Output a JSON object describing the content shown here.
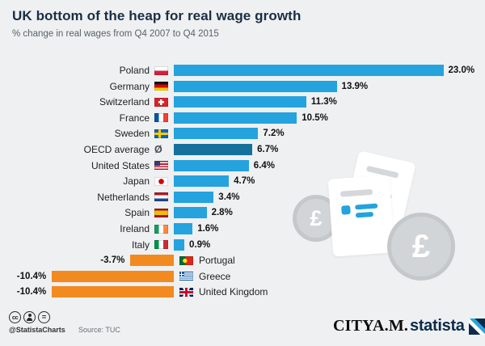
{
  "title": "UK bottom of the heap for real wage growth",
  "subtitle": "% change in real wages from Q4 2007 to Q4 2015",
  "deco": {
    "coin_symbol": "£"
  },
  "footer": {
    "handle": "@StatistaCharts",
    "source": "Source: TUC",
    "cityam": "CITYA.M.",
    "statista": "statista",
    "icons": {
      "cc": "cc",
      "eq": "="
    }
  },
  "chart_data": {
    "type": "bar",
    "orientation": "horizontal",
    "unit": "%",
    "title": "UK bottom of the heap for real wage growth",
    "subtitle": "% change in real wages from Q4 2007 to Q4 2015",
    "xlim": [
      -10.4,
      23.0
    ],
    "oecd_symbol": "Ø",
    "colors": {
      "blue": "#24a3de",
      "dark": "#15719c",
      "orange": "#f28a1f"
    },
    "rows": [
      {
        "country": "Poland",
        "value": 23.0,
        "label": "23.0%",
        "flag": "pl",
        "series": "blue"
      },
      {
        "country": "Germany",
        "value": 13.9,
        "label": "13.9%",
        "flag": "de",
        "series": "blue"
      },
      {
        "country": "Switzerland",
        "value": 11.3,
        "label": "11.3%",
        "flag": "ch",
        "series": "blue"
      },
      {
        "country": "France",
        "value": 10.5,
        "label": "10.5%",
        "flag": "fr",
        "series": "blue"
      },
      {
        "country": "Sweden",
        "value": 7.2,
        "label": "7.2%",
        "flag": "se",
        "series": "blue"
      },
      {
        "country": "OECD average",
        "value": 6.7,
        "label": "6.7%",
        "flag": "oecd",
        "series": "dark"
      },
      {
        "country": "United States",
        "value": 6.4,
        "label": "6.4%",
        "flag": "us",
        "series": "blue"
      },
      {
        "country": "Japan",
        "value": 4.7,
        "label": "4.7%",
        "flag": "jp",
        "series": "blue"
      },
      {
        "country": "Netherlands",
        "value": 3.4,
        "label": "3.4%",
        "flag": "nl",
        "series": "blue"
      },
      {
        "country": "Spain",
        "value": 2.8,
        "label": "2.8%",
        "flag": "es",
        "series": "blue"
      },
      {
        "country": "Ireland",
        "value": 1.6,
        "label": "1.6%",
        "flag": "ie",
        "series": "blue"
      },
      {
        "country": "Italy",
        "value": 0.9,
        "label": "0.9%",
        "flag": "it",
        "series": "blue"
      },
      {
        "country": "Portugal",
        "value": -3.7,
        "label": "-3.7%",
        "flag": "pt",
        "series": "orange"
      },
      {
        "country": "Greece",
        "value": -10.4,
        "label": "-10.4%",
        "flag": "gr",
        "series": "orange"
      },
      {
        "country": "United Kingdom",
        "value": -10.4,
        "label": "-10.4%",
        "flag": "gb",
        "series": "orange"
      }
    ]
  }
}
